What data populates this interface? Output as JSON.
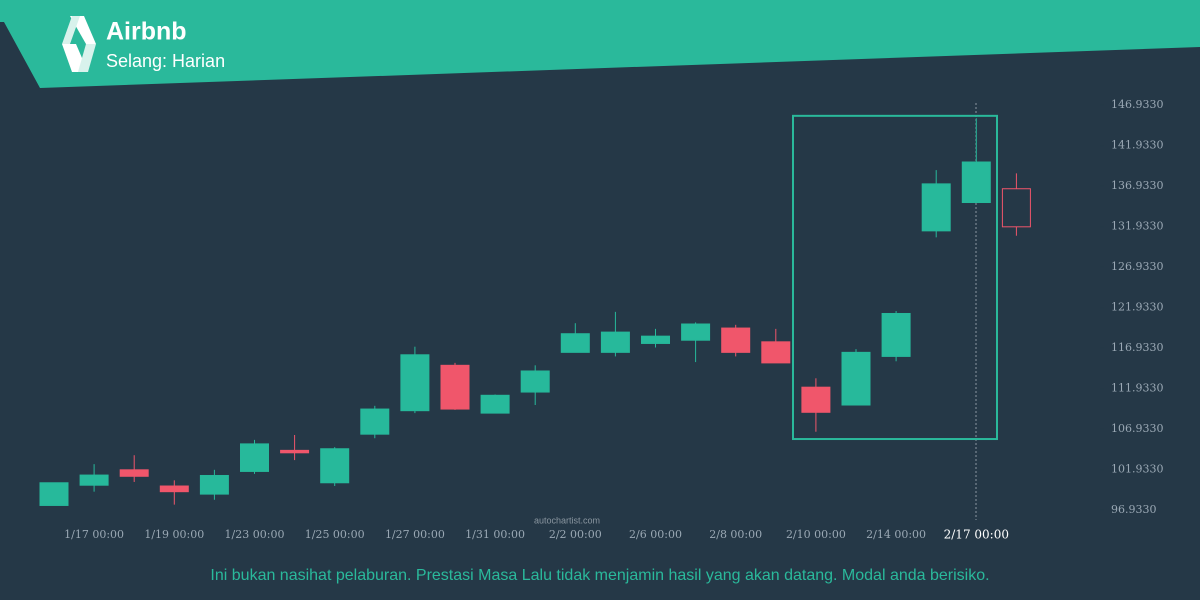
{
  "header": {
    "title": "Airbnb",
    "subtitle": "Selang: Harian"
  },
  "chart_data": {
    "type": "candlestick",
    "categories": [
      null,
      "1/17 00:00",
      null,
      "1/19 00:00",
      null,
      "1/23 00:00",
      null,
      "1/25 00:00",
      null,
      "1/27 00:00",
      null,
      "1/31 00:00",
      null,
      "2/2 00:00",
      null,
      "2/6 00:00",
      null,
      "2/8 00:00",
      null,
      "2/10 00:00",
      null,
      "2/14 00:00",
      null,
      "2/17 00:00",
      null
    ],
    "open": [
      97.5,
      100.0,
      101.9,
      99.9,
      98.9,
      101.7,
      104.3,
      100.3,
      106.3,
      109.2,
      114.8,
      108.9,
      111.5,
      116.4,
      116.4,
      117.5,
      117.9,
      119.4,
      117.7,
      112.1,
      109.9,
      115.9,
      131.4,
      134.9,
      136.6
    ],
    "high": [
      100.3,
      102.6,
      103.7,
      100.6,
      101.9,
      105.6,
      106.2,
      104.7,
      109.8,
      117.1,
      115.1,
      111.2,
      114.8,
      120.0,
      121.4,
      119.3,
      120.1,
      119.8,
      119.3,
      113.2,
      116.8,
      121.5,
      138.9,
      145.3,
      138.5
    ],
    "low": [
      97.5,
      99.2,
      100.4,
      97.6,
      98.2,
      101.4,
      103.1,
      99.9,
      105.8,
      108.9,
      109.3,
      108.9,
      109.9,
      116.4,
      115.9,
      117.0,
      115.2,
      115.9,
      115.1,
      106.6,
      109.9,
      115.3,
      130.6,
      134.9,
      130.8
    ],
    "close": [
      100.3,
      101.25,
      101.1,
      99.2,
      101.2,
      105.1,
      104.0,
      104.5,
      109.4,
      116.1,
      109.4,
      111.1,
      114.1,
      118.7,
      118.9,
      118.4,
      119.9,
      116.4,
      115.1,
      109.0,
      116.4,
      121.2,
      137.2,
      139.9,
      131.9
    ],
    "up_color": "#27b99b",
    "down_color": "#f0566b",
    "ylim": [
      96.0,
      148.0
    ],
    "yticks": [
      {
        "value": 96.933,
        "label": "96.9330"
      },
      {
        "value": 101.933,
        "label": "101.9330"
      },
      {
        "value": 106.933,
        "label": "106.9330"
      },
      {
        "value": 111.933,
        "label": "111.9330"
      },
      {
        "value": 116.933,
        "label": "116.9330"
      },
      {
        "value": 121.933,
        "label": "121.9330"
      },
      {
        "value": 126.933,
        "label": "126.9330"
      },
      {
        "value": 131.933,
        "label": "131.9330"
      },
      {
        "value": 136.933,
        "label": "136.9330"
      },
      {
        "value": 141.933,
        "label": "141.9330"
      },
      {
        "value": 146.933,
        "label": "146.9330"
      }
    ],
    "pattern_range": [
      105.7,
      145.6
    ],
    "watermark": "autochartist.com"
  },
  "footer": {
    "disclaimer": "Ini bukan nasihat pelaburan. Prestasi Masa Lalu tidak menjamin hasil yang akan datang. Modal anda berisiko."
  }
}
